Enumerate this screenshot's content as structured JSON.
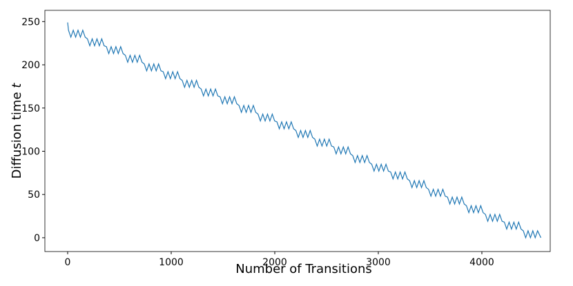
{
  "chart_data": {
    "type": "line",
    "xlabel": "Number of Transitions",
    "ylabel": "Diffusion time",
    "ylabel_symbol": "t",
    "x": [
      0,
      8,
      31,
      54,
      77,
      100,
      123,
      146,
      169,
      191,
      214,
      237,
      260,
      283,
      306,
      329,
      352,
      374,
      397,
      420,
      443,
      466,
      489,
      512,
      535,
      557,
      580,
      603,
      626,
      649,
      672,
      695,
      718,
      740,
      763,
      786,
      809,
      832,
      855,
      878,
      901,
      923,
      946,
      969,
      992,
      1015,
      1038,
      1061,
      1084,
      1106,
      1129,
      1152,
      1175,
      1198,
      1221,
      1244,
      1267,
      1289,
      1312,
      1335,
      1358,
      1381,
      1404,
      1427,
      1450,
      1472,
      1495,
      1518,
      1541,
      1564,
      1587,
      1610,
      1633,
      1655,
      1678,
      1701,
      1724,
      1747,
      1770,
      1793,
      1816,
      1838,
      1861,
      1884,
      1907,
      1930,
      1953,
      1976,
      1999,
      2021,
      2044,
      2067,
      2090,
      2113,
      2136,
      2159,
      2182,
      2204,
      2227,
      2250,
      2273,
      2296,
      2319,
      2342,
      2365,
      2387,
      2410,
      2433,
      2456,
      2479,
      2502,
      2525,
      2548,
      2570,
      2593,
      2616,
      2639,
      2662,
      2685,
      2708,
      2731,
      2753,
      2776,
      2799,
      2822,
      2845,
      2868,
      2891,
      2914,
      2936,
      2959,
      2982,
      3005,
      3028,
      3051,
      3074,
      3097,
      3119,
      3142,
      3165,
      3188,
      3211,
      3234,
      3257,
      3280,
      3302,
      3325,
      3348,
      3371,
      3394,
      3417,
      3440,
      3463,
      3485,
      3508,
      3531,
      3554,
      3577,
      3600,
      3623,
      3646,
      3668,
      3691,
      3714,
      3737,
      3760,
      3783,
      3806,
      3829,
      3851,
      3874,
      3897,
      3920,
      3943,
      3966,
      3989,
      4012,
      4034,
      4057,
      4080,
      4103,
      4126,
      4149,
      4172,
      4195,
      4217,
      4240,
      4263,
      4286,
      4309,
      4332,
      4355,
      4378,
      4400,
      4423,
      4446,
      4469,
      4492,
      4515,
      4538,
      4570
    ],
    "series": [
      {
        "color": "#1f77b4",
        "values": [
          249,
          240,
          232,
          240,
          232,
          240,
          232,
          240,
          232,
          230,
          222,
          230,
          222,
          230,
          222,
          230,
          222,
          221,
          213,
          221,
          213,
          221,
          213,
          221,
          213,
          211,
          203,
          211,
          203,
          211,
          203,
          211,
          203,
          201,
          193,
          201,
          193,
          201,
          193,
          201,
          193,
          192,
          184,
          192,
          184,
          192,
          184,
          192,
          184,
          182,
          174,
          182,
          174,
          182,
          174,
          182,
          174,
          172,
          164,
          172,
          164,
          172,
          164,
          172,
          164,
          163,
          155,
          163,
          155,
          163,
          155,
          163,
          155,
          153,
          145,
          153,
          145,
          153,
          145,
          153,
          145,
          143,
          135,
          143,
          135,
          143,
          135,
          143,
          135,
          134,
          126,
          134,
          126,
          134,
          126,
          134,
          126,
          124,
          116,
          124,
          116,
          124,
          116,
          124,
          116,
          114,
          106,
          114,
          106,
          114,
          106,
          114,
          106,
          105,
          97,
          105,
          97,
          105,
          97,
          105,
          97,
          95,
          87,
          95,
          87,
          95,
          87,
          95,
          87,
          85,
          77,
          85,
          77,
          85,
          77,
          85,
          77,
          76,
          68,
          76,
          68,
          76,
          68,
          76,
          68,
          66,
          58,
          66,
          58,
          66,
          58,
          66,
          58,
          56,
          48,
          56,
          48,
          56,
          48,
          56,
          48,
          47,
          39,
          47,
          39,
          47,
          39,
          47,
          39,
          37,
          29,
          37,
          29,
          37,
          29,
          37,
          29,
          27,
          19,
          27,
          19,
          27,
          19,
          27,
          19,
          18,
          10,
          18,
          10,
          18,
          10,
          18,
          10,
          8,
          0,
          8,
          0,
          8,
          0,
          8,
          0
        ]
      }
    ],
    "xlim": [
      -220,
      4660
    ],
    "xticks": [
      0,
      1000,
      2000,
      3000,
      4000
    ],
    "ylim": [
      -16,
      263
    ],
    "yticks": [
      0,
      50,
      100,
      150,
      200,
      250
    ],
    "grid": false
  }
}
